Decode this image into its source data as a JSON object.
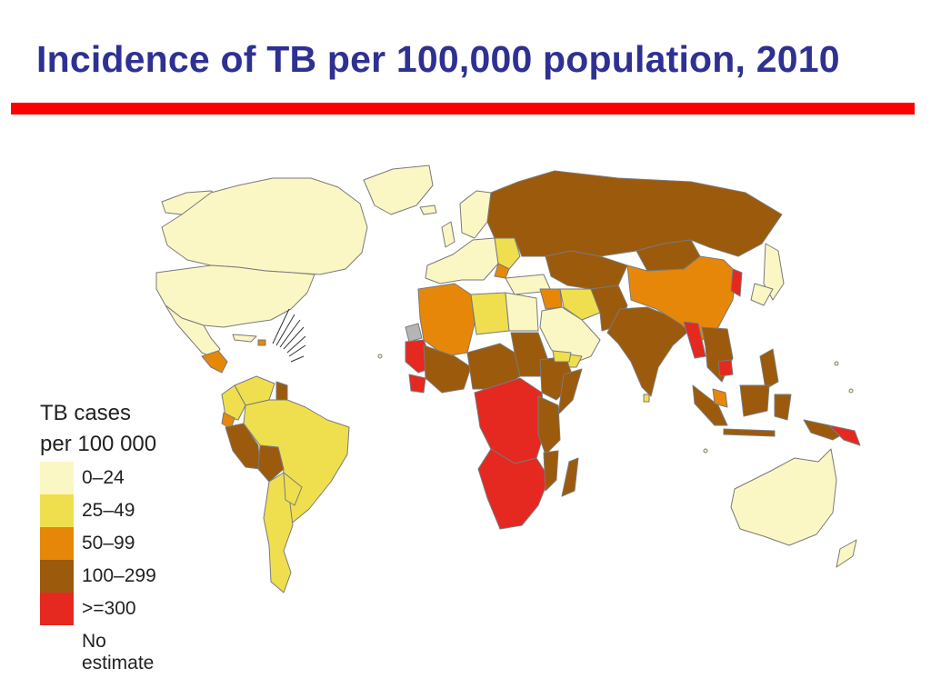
{
  "slide": {
    "title": "Incidence of TB per 100,000 population, 2010"
  },
  "legend": {
    "title_line1": "TB cases",
    "title_line2": "per 100 000",
    "items": [
      {
        "label": "0–24",
        "color": "#fbf7c4"
      },
      {
        "label": "25–49",
        "color": "#efdf4f"
      },
      {
        "label": "50–99",
        "color": "#e6870a"
      },
      {
        "label": "100–299",
        "color": "#9c5a0c"
      },
      {
        "label": ">=300",
        "color": "#e52820"
      },
      {
        "label": "No estimate",
        "color": "#ffffff"
      }
    ]
  },
  "colors": {
    "title": "#2e3192",
    "rule": "#ff0000",
    "border": "#7a7a7a"
  }
}
